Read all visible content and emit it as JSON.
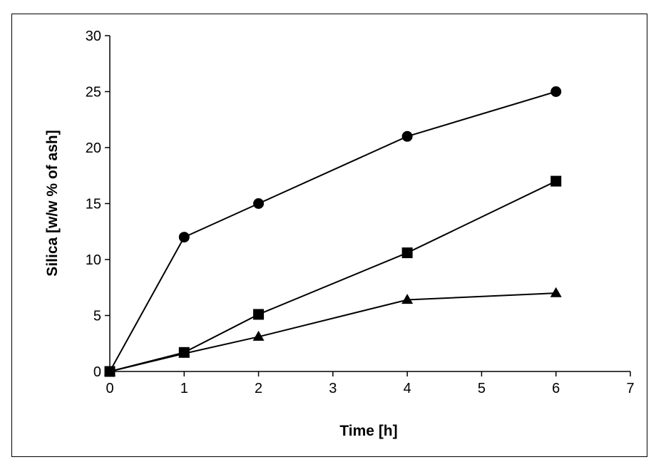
{
  "chart_data": {
    "type": "scatter",
    "xlabel": "Time [h]",
    "ylabel": "Silica [w/w % of ash]",
    "xlim": [
      0,
      7
    ],
    "ylim": [
      0,
      30
    ],
    "xticks": [
      0,
      1,
      2,
      3,
      4,
      5,
      6,
      7
    ],
    "yticks": [
      0,
      5,
      10,
      15,
      20,
      25,
      30
    ],
    "grid": false,
    "legend": "none",
    "lines": true,
    "series": [
      {
        "marker": "circle",
        "x": [
          0,
          1,
          2,
          4,
          6
        ],
        "y": [
          0,
          12,
          15,
          21,
          25
        ]
      },
      {
        "marker": "square",
        "x": [
          0,
          1,
          2,
          4,
          6
        ],
        "y": [
          0,
          1.7,
          5.1,
          10.6,
          17
        ]
      },
      {
        "marker": "triangle",
        "x": [
          0,
          1,
          2,
          4,
          6
        ],
        "y": [
          0,
          1.6,
          3.1,
          6.4,
          7
        ]
      }
    ],
    "colors": {
      "line": "#000000",
      "marker": "#000000",
      "axis": "#000000"
    }
  }
}
